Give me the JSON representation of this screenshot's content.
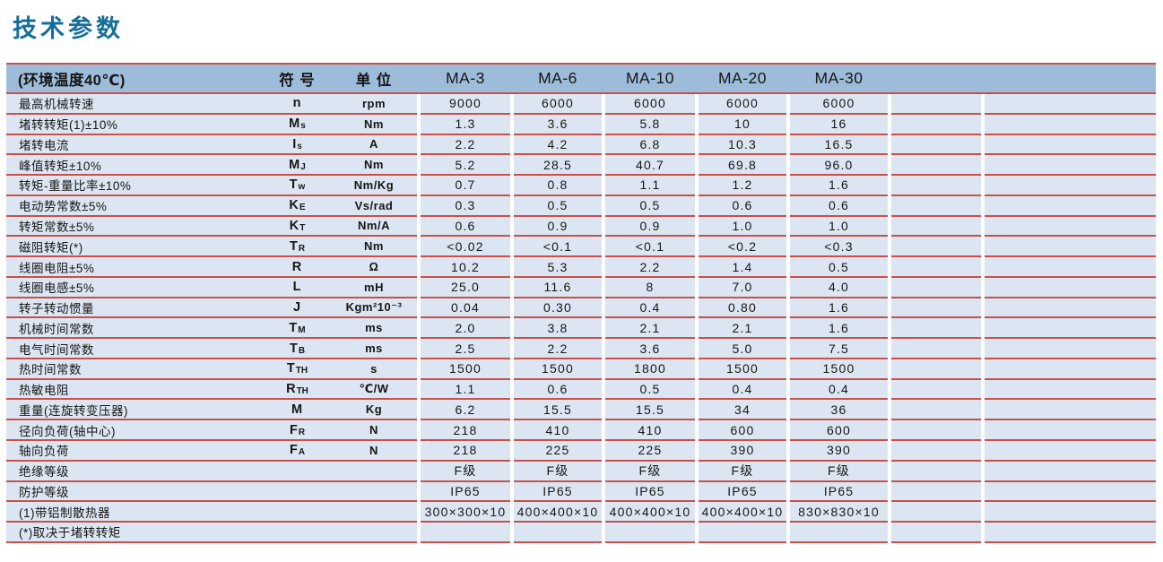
{
  "page": {
    "title": "技术参数"
  },
  "accent_colors": {
    "title_text": "#176d99",
    "header_background": "#9dbcd9",
    "row_background": "#dce6f2",
    "rule_lines": "#c9504a"
  },
  "table": {
    "header": {
      "param": "(环境温度40℃)",
      "symbol": "符 号",
      "unit": "单 位",
      "models": [
        "MA-3",
        "MA-6",
        "MA-10",
        "MA-20",
        "MA-30"
      ],
      "extras": [
        "",
        ""
      ]
    },
    "rows": [
      {
        "param": "最高机械转速",
        "sym": "n",
        "sub": "",
        "unit": "rpm",
        "values": [
          "9000",
          "6000",
          "6000",
          "6000",
          "6000"
        ]
      },
      {
        "param": "堵转转矩(1)±10%",
        "sym": "M",
        "sub": "s",
        "unit": "Nm",
        "values": [
          "1.3",
          "3.6",
          "5.8",
          "10",
          "16"
        ]
      },
      {
        "param": "堵转电流",
        "sym": "I",
        "sub": "s",
        "unit": "A",
        "values": [
          "2.2",
          "4.2",
          "6.8",
          "10.3",
          "16.5"
        ]
      },
      {
        "param": "峰值转矩±10%",
        "sym": "M",
        "sub": "J",
        "unit": "Nm",
        "values": [
          "5.2",
          "28.5",
          "40.7",
          "69.8",
          "96.0"
        ]
      },
      {
        "param": "转矩-重量比率±10%",
        "sym": "T",
        "sub": "w",
        "unit": "Nm/Kg",
        "values": [
          "0.7",
          "0.8",
          "1.1",
          "1.2",
          "1.6"
        ]
      },
      {
        "param": "电动势常数±5%",
        "sym": "K",
        "sub": "E",
        "unit": "Vs/rad",
        "values": [
          "0.3",
          "0.5",
          "0.5",
          "0.6",
          "0.6"
        ]
      },
      {
        "param": "转矩常数±5%",
        "sym": "K",
        "sub": "T",
        "unit": "Nm/A",
        "values": [
          "0.6",
          "0.9",
          "0.9",
          "1.0",
          "1.0"
        ]
      },
      {
        "param": "磁阻转矩(*)",
        "sym": "T",
        "sub": "R",
        "unit": "Nm",
        "values": [
          "<0.02",
          "<0.1",
          "<0.1",
          "<0.2",
          "<0.3"
        ]
      },
      {
        "param": "线圈电阻±5%",
        "sym": "R",
        "sub": "",
        "unit": "Ω",
        "values": [
          "10.2",
          "5.3",
          "2.2",
          "1.4",
          "0.5"
        ]
      },
      {
        "param": "线圈电感±5%",
        "sym": "L",
        "sub": "",
        "unit": "mH",
        "values": [
          "25.0",
          "11.6",
          "8",
          "7.0",
          "4.0"
        ]
      },
      {
        "param": "转子转动惯量",
        "sym": "J",
        "sub": "",
        "unit": "Kgm²10⁻³",
        "values": [
          "0.04",
          "0.30",
          "0.4",
          "0.80",
          "1.6"
        ]
      },
      {
        "param": "机械时间常数",
        "sym": "T",
        "sub": "M",
        "unit": "ms",
        "values": [
          "2.0",
          "3.8",
          "2.1",
          "2.1",
          "1.6"
        ]
      },
      {
        "param": "电气时间常数",
        "sym": "T",
        "sub": "B",
        "unit": "ms",
        "values": [
          "2.5",
          "2.2",
          "3.6",
          "5.0",
          "7.5"
        ]
      },
      {
        "param": "热时间常数",
        "sym": "T",
        "sub": "TH",
        "unit": "s",
        "values": [
          "1500",
          "1500",
          "1800",
          "1500",
          "1500"
        ]
      },
      {
        "param": "热敏电阻",
        "sym": "R",
        "sub": "TH",
        "unit": "℃/W",
        "values": [
          "1.1",
          "0.6",
          "0.5",
          "0.4",
          "0.4"
        ]
      },
      {
        "param": "重量(连旋转变压器)",
        "sym": "M",
        "sub": "",
        "unit": "Kg",
        "values": [
          "6.2",
          "15.5",
          "15.5",
          "34",
          "36"
        ]
      },
      {
        "param": "径向负荷(轴中心)",
        "sym": "F",
        "sub": "R",
        "unit": "N",
        "values": [
          "218",
          "410",
          "410",
          "600",
          "600"
        ]
      },
      {
        "param": "轴向负荷",
        "sym": "F",
        "sub": "A",
        "unit": "N",
        "values": [
          "218",
          "225",
          "225",
          "390",
          "390"
        ]
      },
      {
        "param": "绝缘等级",
        "sym": "",
        "sub": "",
        "unit": "",
        "values": [
          "F级",
          "F级",
          "F级",
          "F级",
          "F级"
        ]
      },
      {
        "param": "防护等级",
        "sym": "",
        "sub": "",
        "unit": "",
        "values": [
          "IP65",
          "IP65",
          "IP65",
          "IP65",
          "IP65"
        ]
      },
      {
        "param": "(1)带铝制散热器",
        "sym": "",
        "sub": "",
        "unit": "",
        "values": [
          "300×300×10",
          "400×400×10",
          "400×400×10",
          "400×400×10",
          "830×830×10"
        ]
      },
      {
        "param": "(*)取决于堵转转矩",
        "sym": "",
        "sub": "",
        "unit": "",
        "values": [
          "",
          "",
          "",
          "",
          ""
        ]
      }
    ]
  }
}
